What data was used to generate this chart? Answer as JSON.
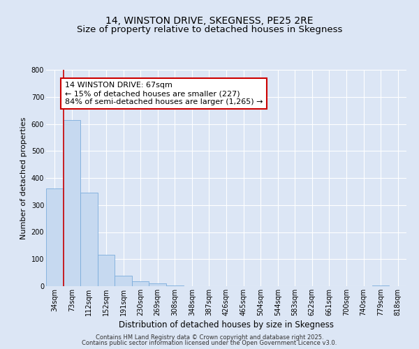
{
  "title": "14, WINSTON DRIVE, SKEGNESS, PE25 2RE",
  "subtitle": "Size of property relative to detached houses in Skegness",
  "xlabel": "Distribution of detached houses by size in Skegness",
  "ylabel": "Number of detached properties",
  "bar_labels": [
    "34sqm",
    "73sqm",
    "112sqm",
    "152sqm",
    "191sqm",
    "230sqm",
    "269sqm",
    "308sqm",
    "348sqm",
    "387sqm",
    "426sqm",
    "465sqm",
    "504sqm",
    "544sqm",
    "583sqm",
    "622sqm",
    "661sqm",
    "700sqm",
    "740sqm",
    "779sqm",
    "818sqm"
  ],
  "bar_values": [
    362,
    614,
    347,
    115,
    40,
    18,
    10,
    3,
    0,
    0,
    0,
    0,
    0,
    0,
    0,
    0,
    0,
    0,
    0,
    2,
    0
  ],
  "bar_color": "#c6d9f0",
  "bar_edge_color": "#7aacdc",
  "vline_x": 0.5,
  "vline_color": "#cc0000",
  "annotation_text": "14 WINSTON DRIVE: 67sqm\n← 15% of detached houses are smaller (227)\n84% of semi-detached houses are larger (1,265) →",
  "annotation_box_color": "#ffffff",
  "annotation_box_edge_color": "#cc0000",
  "ylim": [
    0,
    800
  ],
  "yticks": [
    0,
    100,
    200,
    300,
    400,
    500,
    600,
    700,
    800
  ],
  "background_color": "#dce6f5",
  "plot_background_color": "#dce6f5",
  "footer_line1": "Contains HM Land Registry data © Crown copyright and database right 2025.",
  "footer_line2": "Contains public sector information licensed under the Open Government Licence v3.0.",
  "title_fontsize": 10,
  "xlabel_fontsize": 8.5,
  "ylabel_fontsize": 8,
  "tick_fontsize": 7,
  "annot_fontsize": 8,
  "footer_fontsize": 6
}
